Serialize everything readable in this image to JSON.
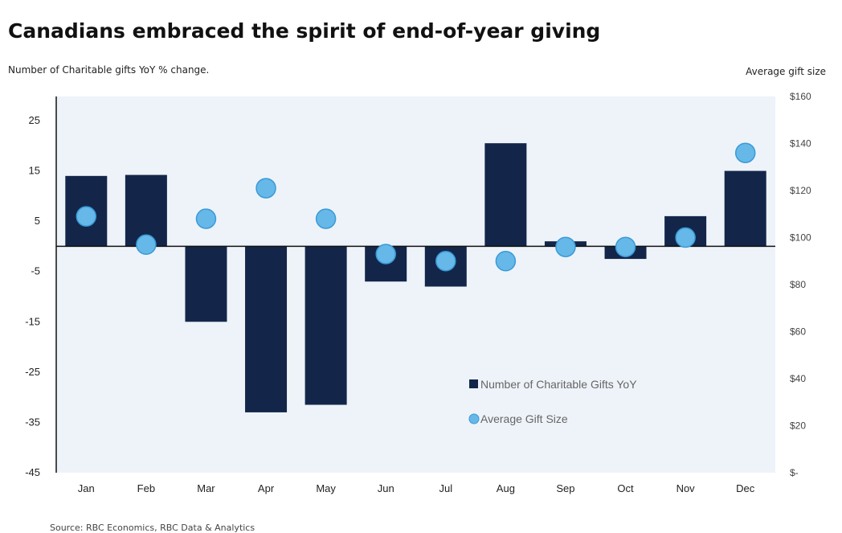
{
  "title": "Canadians embraced the spirit of end-of-year giving",
  "source": "Source: RBC Economics, RBC Data & Analytics",
  "colors": {
    "bar": "#13264a",
    "dot": "#66b8e8",
    "dot_stroke": "#3a9ad6",
    "plot_bg": "#eef3f9"
  },
  "chart_data": {
    "type": "bar+scatter",
    "title": "Canadians embraced the spirit of end-of-year giving",
    "ylabel_left": "Number of Charitable gifts YoY % change.",
    "ylabel_right": "Average gift size",
    "categories": [
      "Jan",
      "Feb",
      "Mar",
      "Apr",
      "May",
      "Jun",
      "Jul",
      "Aug",
      "Sep",
      "Oct",
      "Nov",
      "Dec"
    ],
    "y_left_ticks": [
      "25",
      "15",
      "5",
      "-5",
      "-15",
      "-25",
      "-35",
      "-45"
    ],
    "y_left_tick_values": [
      25,
      15,
      5,
      -5,
      -15,
      -25,
      -35,
      -45
    ],
    "y_right_ticks": [
      "$160",
      "$140",
      "$120",
      "$100",
      "$80",
      "$60",
      "$40",
      "$20",
      "$-"
    ],
    "y_right_tick_values": [
      160,
      140,
      120,
      100,
      80,
      60,
      40,
      20,
      0
    ],
    "ylim_left": [
      -45,
      30
    ],
    "ylim_right": [
      0,
      160
    ],
    "series": [
      {
        "name": "Number of Charitable Gifts YoY",
        "kind": "bar",
        "axis": "left",
        "values": [
          14,
          14.2,
          -15,
          -33,
          -31.5,
          -7,
          -8,
          20.5,
          1,
          -2.5,
          6,
          15
        ]
      },
      {
        "name": "Average Gift Size",
        "kind": "scatter",
        "axis": "right",
        "values": [
          109,
          97,
          108,
          121,
          108,
          93,
          90,
          90,
          96,
          96,
          100,
          136
        ]
      }
    ],
    "legend_position": "lower-right inside"
  }
}
